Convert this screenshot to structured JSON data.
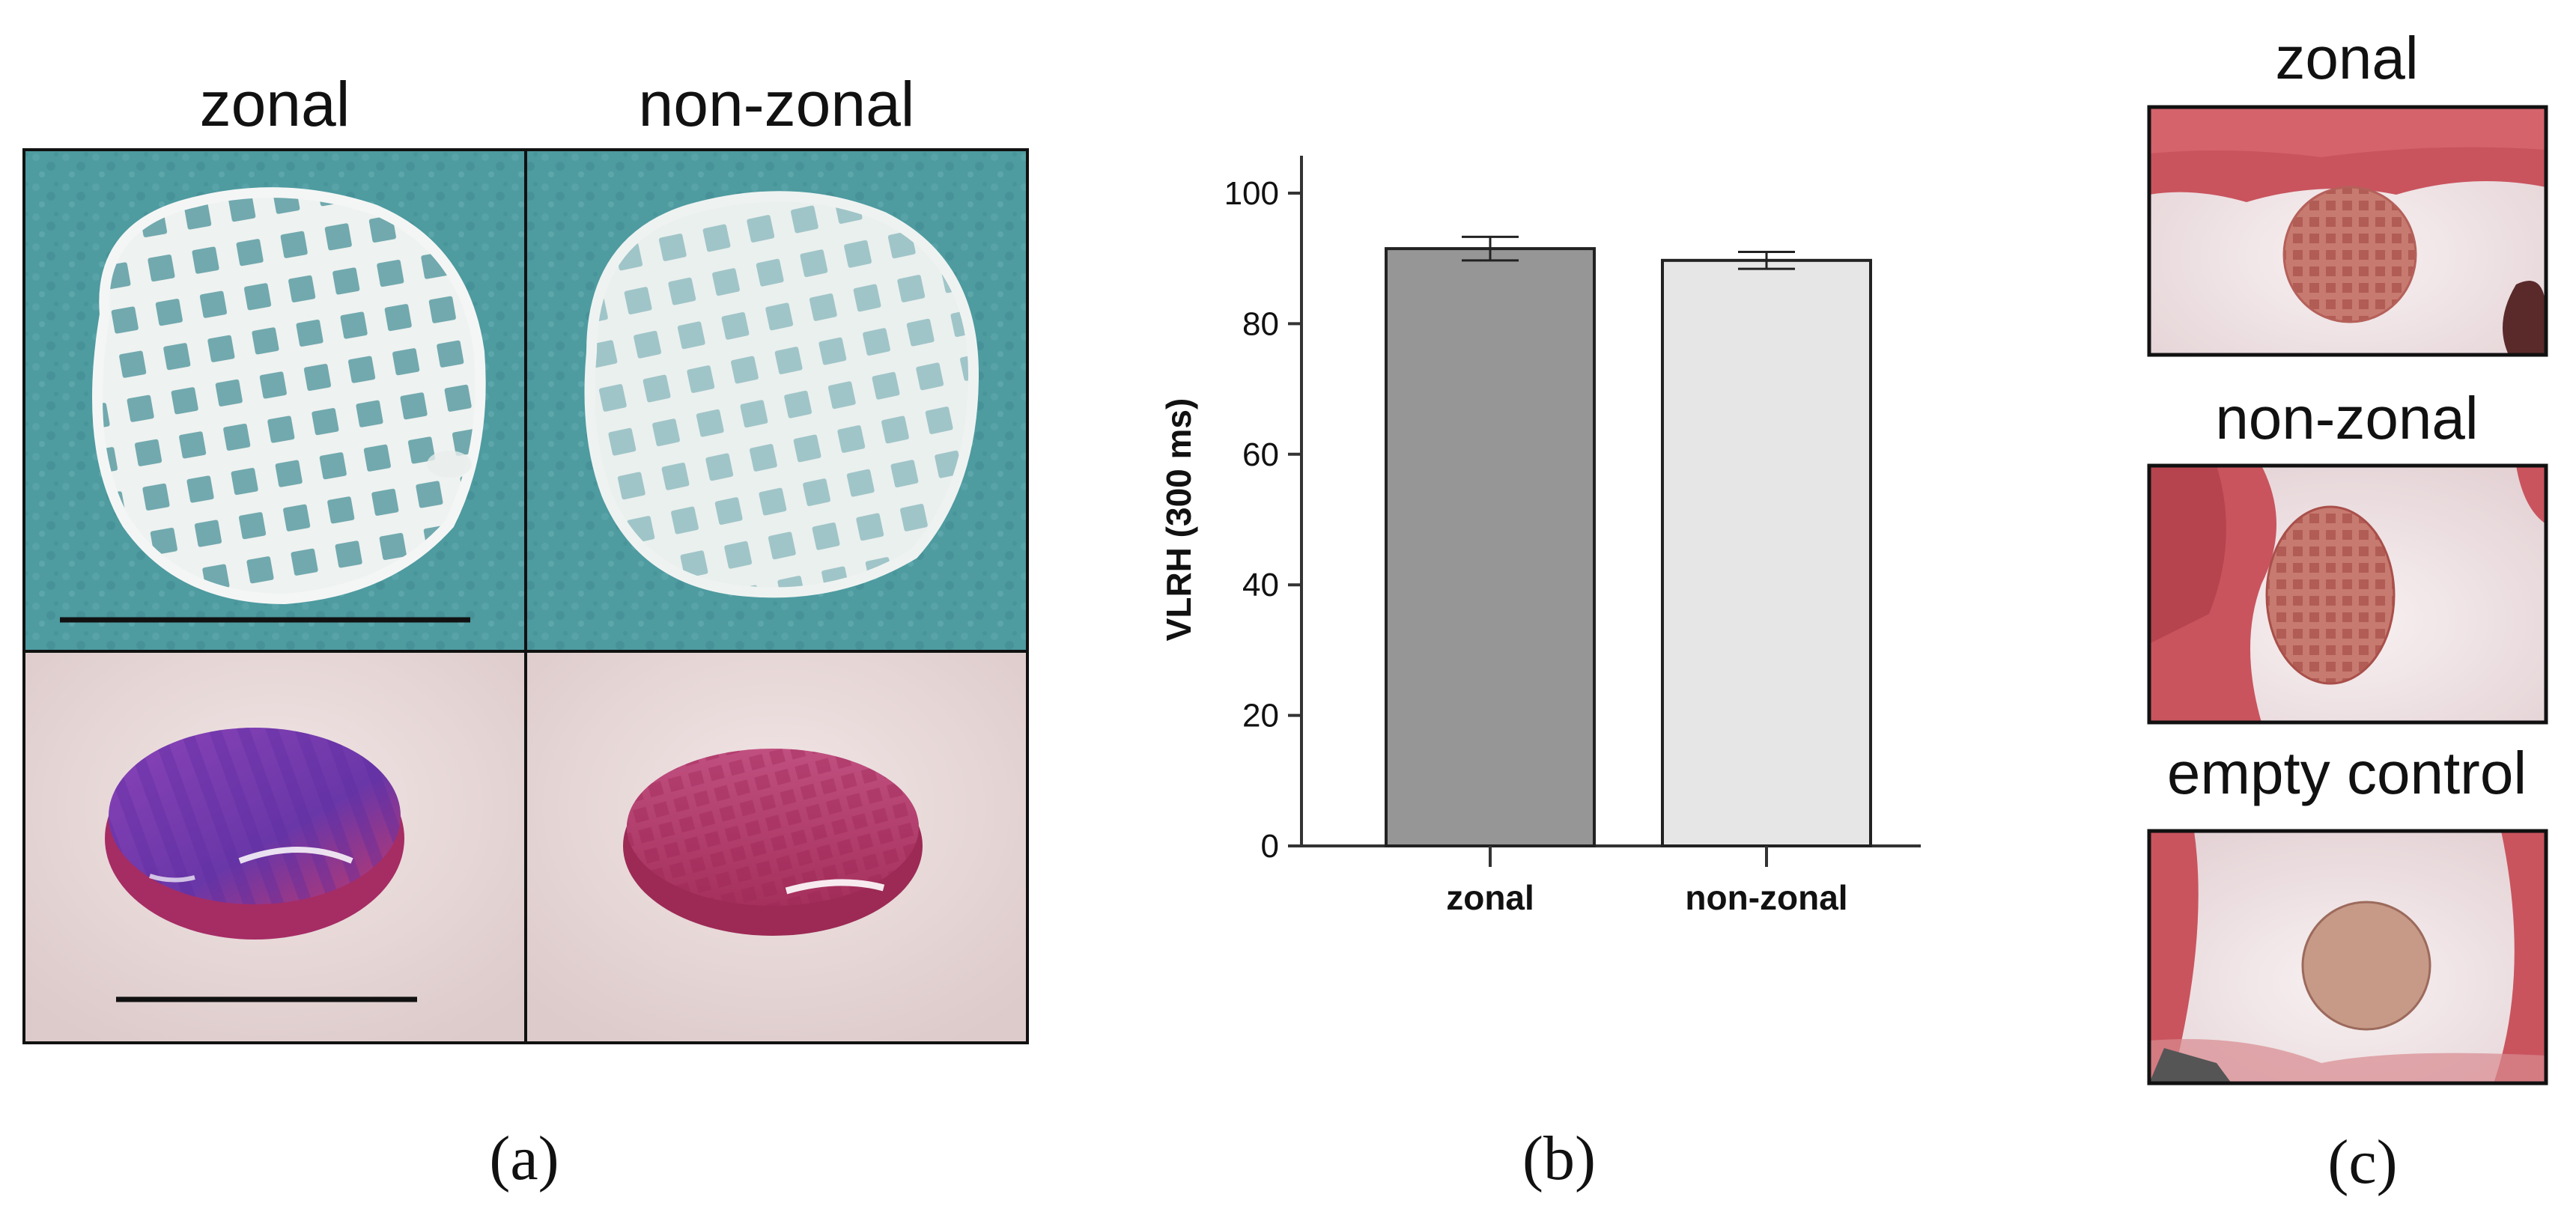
{
  "panel_a": {
    "letter": "(a)",
    "col_labels": [
      "zonal",
      "non-zonal"
    ]
  },
  "panel_b": {
    "letter": "(b)"
  },
  "panel_c": {
    "letter": "(c)",
    "row_labels": [
      "zonal",
      "non-zonal",
      "empty control"
    ]
  },
  "colors": {
    "photo_top_background": "#4e9ba0",
    "photo_bottom_background": "#ead9d9",
    "scaffold_white": "#eef2f0",
    "stain_purple": "#7b40b0",
    "stain_pink": "#c2386a",
    "tissue_red": "#c9545e",
    "cartilage_white": "#f4ecee",
    "bar_zonal": "#969696",
    "bar_non_zonal": "#e6e6e6"
  },
  "chart_data": {
    "type": "bar",
    "categories": [
      "zonal",
      "non-zonal"
    ],
    "values": [
      91.5,
      89.7
    ],
    "errors": [
      1.8,
      1.3
    ],
    "ylabel": "VLRH (300 ms)",
    "ylim": [
      0,
      100
    ],
    "yticks": [
      0,
      20,
      40,
      60,
      80,
      100
    ],
    "grid": false,
    "legend": "none"
  }
}
